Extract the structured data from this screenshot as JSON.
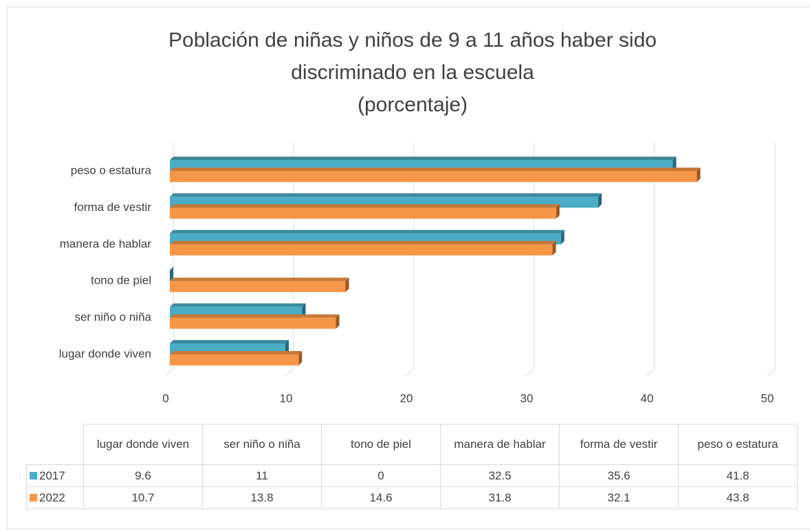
{
  "chart_data": {
    "type": "bar",
    "orientation": "horizontal",
    "title": [
      "Población de niñas y niños de 9 a 11 años haber sido",
      "discriminado en la escuela",
      "(porcentaje)"
    ],
    "categories": [
      "lugar donde viven",
      "ser niño o niña",
      "tono de piel",
      "manera de hablar",
      "forma de vestir",
      "peso o estatura"
    ],
    "series": [
      {
        "name": "2017",
        "color": "#4bacc6",
        "values": [
          9.6,
          11,
          0,
          32.5,
          35.6,
          41.8
        ]
      },
      {
        "name": "2022",
        "color": "#f79646",
        "values": [
          10.7,
          13.8,
          14.6,
          31.8,
          32.1,
          43.8
        ]
      }
    ],
    "xlim": [
      0,
      50
    ],
    "xticks": [
      0,
      10,
      20,
      30,
      40,
      50
    ],
    "grid": true,
    "data_table": true
  }
}
